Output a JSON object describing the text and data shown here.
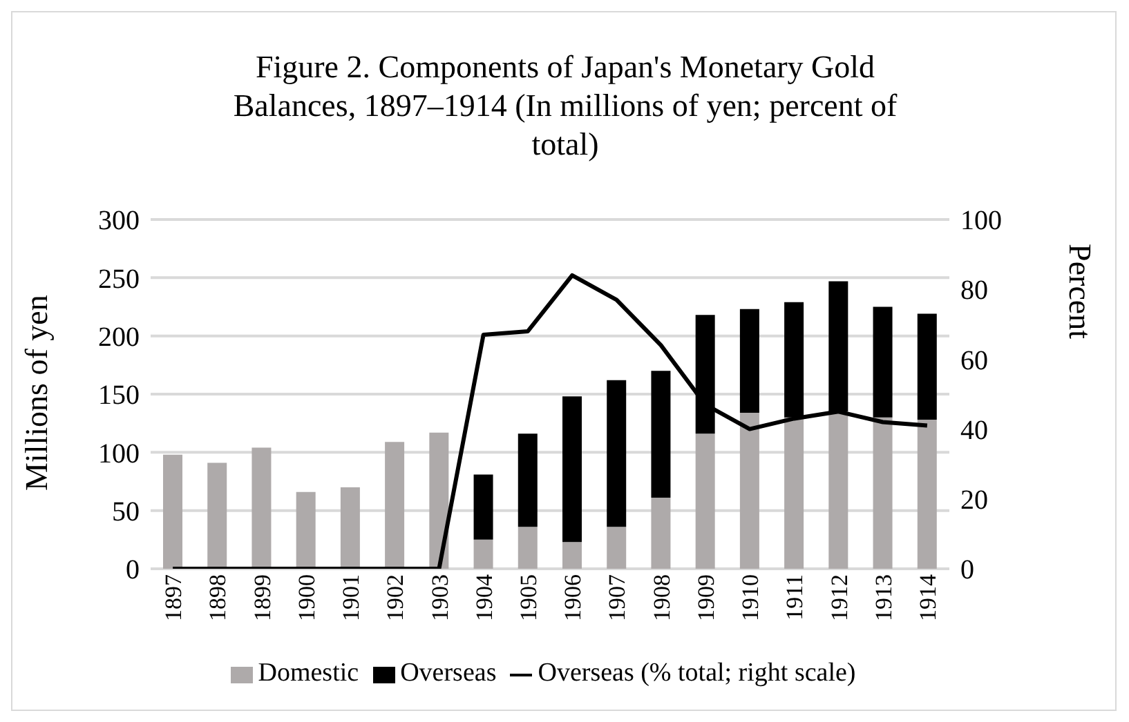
{
  "chart_data": {
    "type": "bar",
    "title": "Figure 2. Components of Japan's Monetary Gold Balances, 1897–1914 (In millions of yen; percent of total)",
    "ylabel": "Millions of yen",
    "y2label": "Percent",
    "categories": [
      "1897",
      "1898",
      "1899",
      "1900",
      "1901",
      "1902",
      "1903",
      "1904",
      "1905",
      "1906",
      "1907",
      "1908",
      "1909",
      "1910",
      "1911",
      "1912",
      "1913",
      "1914"
    ],
    "stacked": true,
    "series": [
      {
        "name": "Domestic",
        "color": "#aeaaaa",
        "values": [
          98,
          91,
          104,
          66,
          70,
          109,
          117,
          25,
          36,
          23,
          36,
          61,
          116,
          134,
          130,
          135,
          130,
          128
        ]
      },
      {
        "name": "Overseas",
        "color": "#000000",
        "values": [
          null,
          null,
          null,
          null,
          null,
          null,
          null,
          56,
          80,
          125,
          126,
          109,
          102,
          89,
          99,
          112,
          95,
          91
        ]
      },
      {
        "name": "Overseas (% total; right scale)",
        "type": "line",
        "axis": "y2",
        "color": "#000000",
        "values": [
          0,
          0,
          0,
          0,
          0,
          0,
          0,
          67,
          68,
          84,
          77,
          64,
          47,
          40,
          43,
          45,
          42,
          41
        ]
      }
    ],
    "ylim": [
      0,
      300
    ],
    "yticks": [
      0,
      50,
      100,
      150,
      200,
      250,
      300
    ],
    "y2lim": [
      0,
      100
    ],
    "y2ticks": [
      0,
      20,
      40,
      60,
      80,
      100
    ],
    "grid": "y",
    "legend": "bottom",
    "marker": "none"
  }
}
